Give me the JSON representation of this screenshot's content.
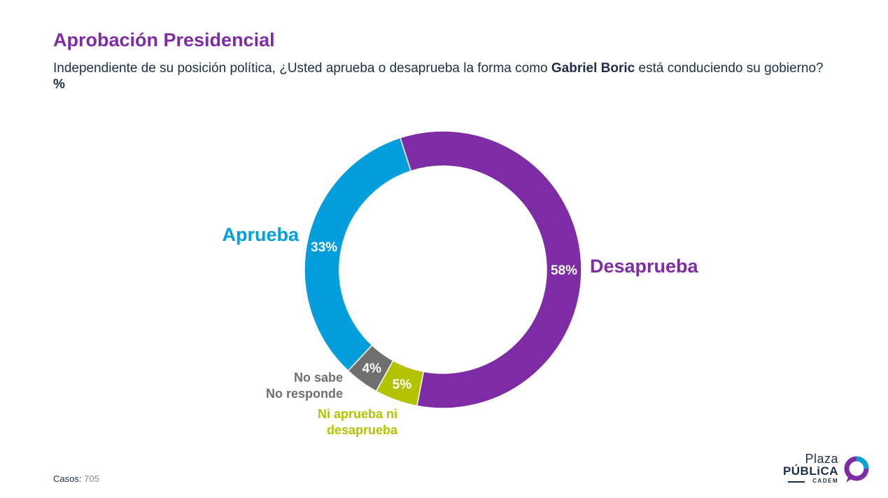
{
  "page": {
    "title": "Aprobación Presidencial",
    "question_pre": "Independiente de su posición política, ¿Usted aprueba o desaprueba la forma como ",
    "question_bold": "Gabriel Boric",
    "question_post": " está conduciendo su gobierno? ",
    "question_unit": "%",
    "cases_label": "Casos",
    "cases_sep": ":",
    "cases_value": "705"
  },
  "logo": {
    "line1": "Plaza",
    "line2": "PÚBLiCA",
    "line3": "CADEM",
    "colors": {
      "navy": "#1c2e4a",
      "cyan": "#0aa0d6",
      "purple": "#7e2ca6"
    }
  },
  "chart_data": {
    "type": "pie",
    "title": "Aprobación Presidencial",
    "unit": "%",
    "slices": [
      {
        "key": "desaprueba",
        "label": "Desaprueba",
        "label_lines": [
          "Desaprueba"
        ],
        "value": 58,
        "value_label": "58%",
        "color": "#7e2ca6"
      },
      {
        "key": "ni",
        "label": "Ni aprueba ni desaprueba",
        "label_lines": [
          "Ni aprueba ni",
          "desaprueba"
        ],
        "value": 5,
        "value_label": "5%",
        "color": "#b3c300"
      },
      {
        "key": "nosabe",
        "label": "No sabe No responde",
        "label_lines": [
          "No sabe",
          "No responde"
        ],
        "value": 4,
        "value_label": "4%",
        "color": "#6f6f6f"
      },
      {
        "key": "aprueba",
        "label": "Aprueba",
        "label_lines": [
          "Aprueba"
        ],
        "value": 33,
        "value_label": "33%",
        "color": "#029fdc"
      }
    ]
  }
}
